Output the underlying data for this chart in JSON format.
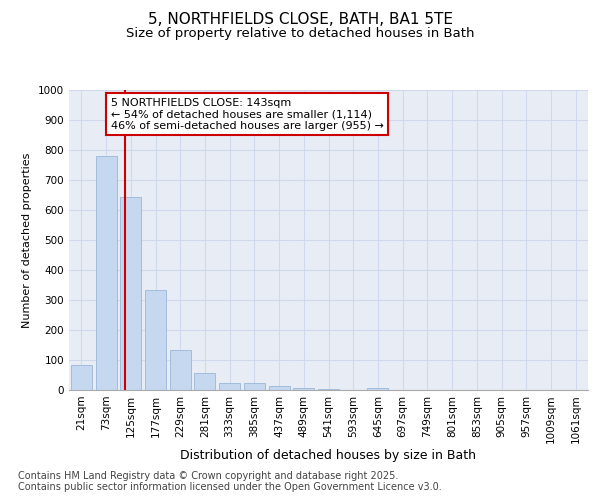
{
  "title_line1": "5, NORTHFIELDS CLOSE, BATH, BA1 5TE",
  "title_line2": "Size of property relative to detached houses in Bath",
  "xlabel": "Distribution of detached houses by size in Bath",
  "ylabel": "Number of detached properties",
  "categories": [
    "21sqm",
    "73sqm",
    "125sqm",
    "177sqm",
    "229sqm",
    "281sqm",
    "333sqm",
    "385sqm",
    "437sqm",
    "489sqm",
    "541sqm",
    "593sqm",
    "645sqm",
    "697sqm",
    "749sqm",
    "801sqm",
    "853sqm",
    "905sqm",
    "957sqm",
    "1009sqm",
    "1061sqm"
  ],
  "values": [
    82,
    780,
    645,
    335,
    133,
    58,
    25,
    22,
    13,
    6,
    5,
    0,
    8,
    0,
    0,
    0,
    0,
    0,
    0,
    0,
    0
  ],
  "bar_color": "#c5d8f0",
  "bar_edge_color": "#9ab8d8",
  "red_line_x": 1.75,
  "red_line_color": "#cc0000",
  "annotation_text": "5 NORTHFIELDS CLOSE: 143sqm\n← 54% of detached houses are smaller (1,114)\n46% of semi-detached houses are larger (955) →",
  "annotation_box_color": "#ffffff",
  "annotation_box_edge_color": "#cc0000",
  "ylim": [
    0,
    1000
  ],
  "yticks": [
    0,
    100,
    200,
    300,
    400,
    500,
    600,
    700,
    800,
    900,
    1000
  ],
  "grid_color": "#d0d8ed",
  "background_color": "#e8edf5",
  "footer_text": "Contains HM Land Registry data © Crown copyright and database right 2025.\nContains public sector information licensed under the Open Government Licence v3.0.",
  "title_fontsize": 11,
  "subtitle_fontsize": 9.5,
  "annotation_fontsize": 8,
  "xlabel_fontsize": 9,
  "ylabel_fontsize": 8,
  "tick_fontsize": 7.5,
  "footer_fontsize": 7
}
